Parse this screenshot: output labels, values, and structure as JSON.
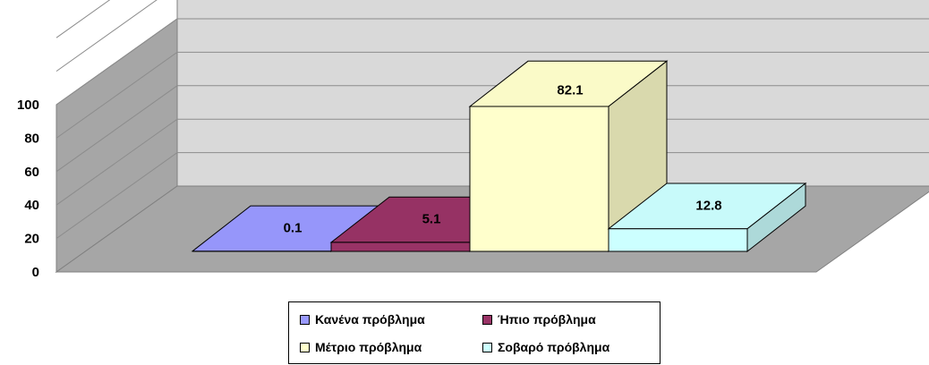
{
  "chart_data": {
    "type": "bar",
    "style": "3d",
    "categories": [
      "Κανένα πρόβλημα",
      "Ήπιο πρόβλημα",
      "Μέτριο πρόβλημα",
      "Σοβαρό πρόβλημα"
    ],
    "values": [
      0.1,
      5.1,
      82.1,
      12.8
    ],
    "value_labels": [
      "0.1",
      "5.1",
      "82.1",
      "12.8"
    ],
    "colors": [
      "#9999FF",
      "#993366",
      "#FFFFCC",
      "#CCFFFF"
    ],
    "ylim": [
      0,
      100
    ],
    "y_ticks": [
      "0",
      "20",
      "40",
      "60",
      "80",
      "100"
    ],
    "grid": true,
    "legend_position": "bottom"
  }
}
